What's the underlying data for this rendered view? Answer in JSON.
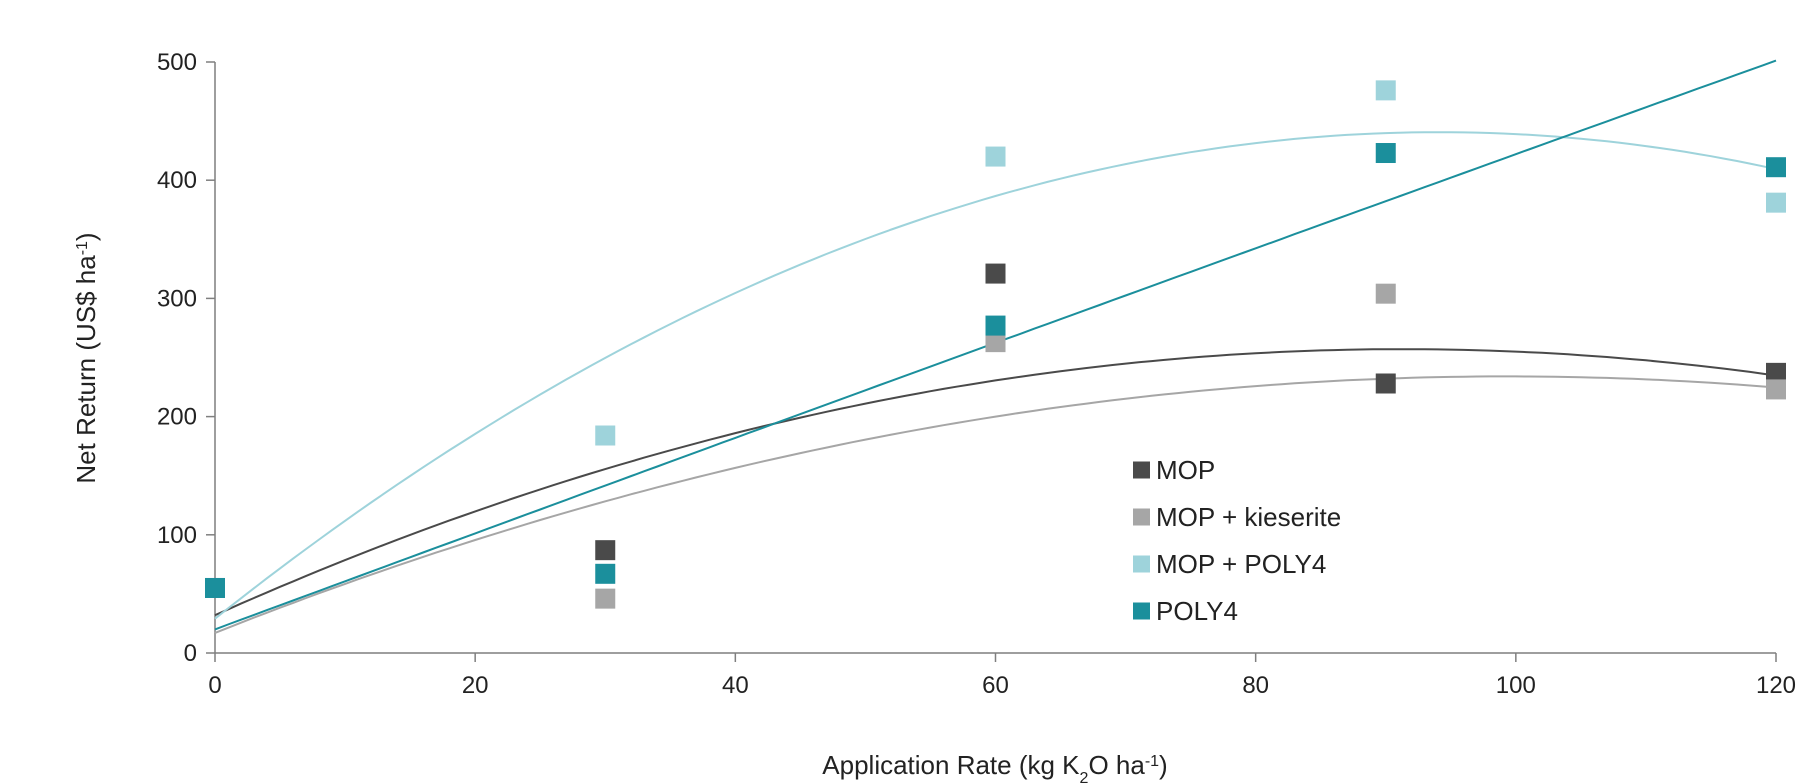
{
  "chart_data": {
    "type": "scatter",
    "xlabel": {
      "pre": "Application Rate (kg K",
      "sub": "2",
      "mid": "O ha",
      "sup": "-1",
      "post": ")"
    },
    "ylabel": {
      "pre": "Net Return (US$ ha",
      "sup": "-1",
      "post": ")"
    },
    "xlim": [
      0,
      120
    ],
    "ylim": [
      0,
      500
    ],
    "xticks": [
      "0",
      "20",
      "40",
      "60",
      "80",
      "100",
      "120"
    ],
    "yticks": [
      "0",
      "100",
      "200",
      "300",
      "400",
      "500"
    ],
    "grid": false,
    "legend_position": "center-right",
    "trendline": "polynomial-order-2",
    "series": [
      {
        "name": "MOP",
        "color": "#4a4a4a",
        "x": [
          0,
          30,
          60,
          90,
          120
        ],
        "y": [
          55,
          87,
          321,
          228,
          237
        ],
        "trend": {
          "a": -0.027,
          "b": 4.93,
          "c": 32
        }
      },
      {
        "name": "MOP + kieserite",
        "color": "#a6a6a6",
        "x": [
          0,
          30,
          60,
          90,
          120
        ],
        "y": [
          55,
          46,
          263,
          304,
          223
        ],
        "trend": {
          "a": -0.022,
          "b": 4.37,
          "c": 17
        }
      },
      {
        "name": "MOP + POLY4",
        "color": "#9ed3db",
        "x": [
          0,
          30,
          60,
          90,
          120
        ],
        "y": [
          55,
          184,
          420,
          476,
          381
        ],
        "trend": {
          "a": -0.0465,
          "b": 8.75,
          "c": 29
        }
      },
      {
        "name": "POLY4",
        "color": "#1b8f9c",
        "x": [
          0,
          30,
          60,
          90,
          120
        ],
        "y": [
          55,
          67,
          277,
          423,
          411
        ],
        "trend": {
          "a": -0.0005,
          "b": 4.07,
          "c": 20
        }
      }
    ]
  }
}
